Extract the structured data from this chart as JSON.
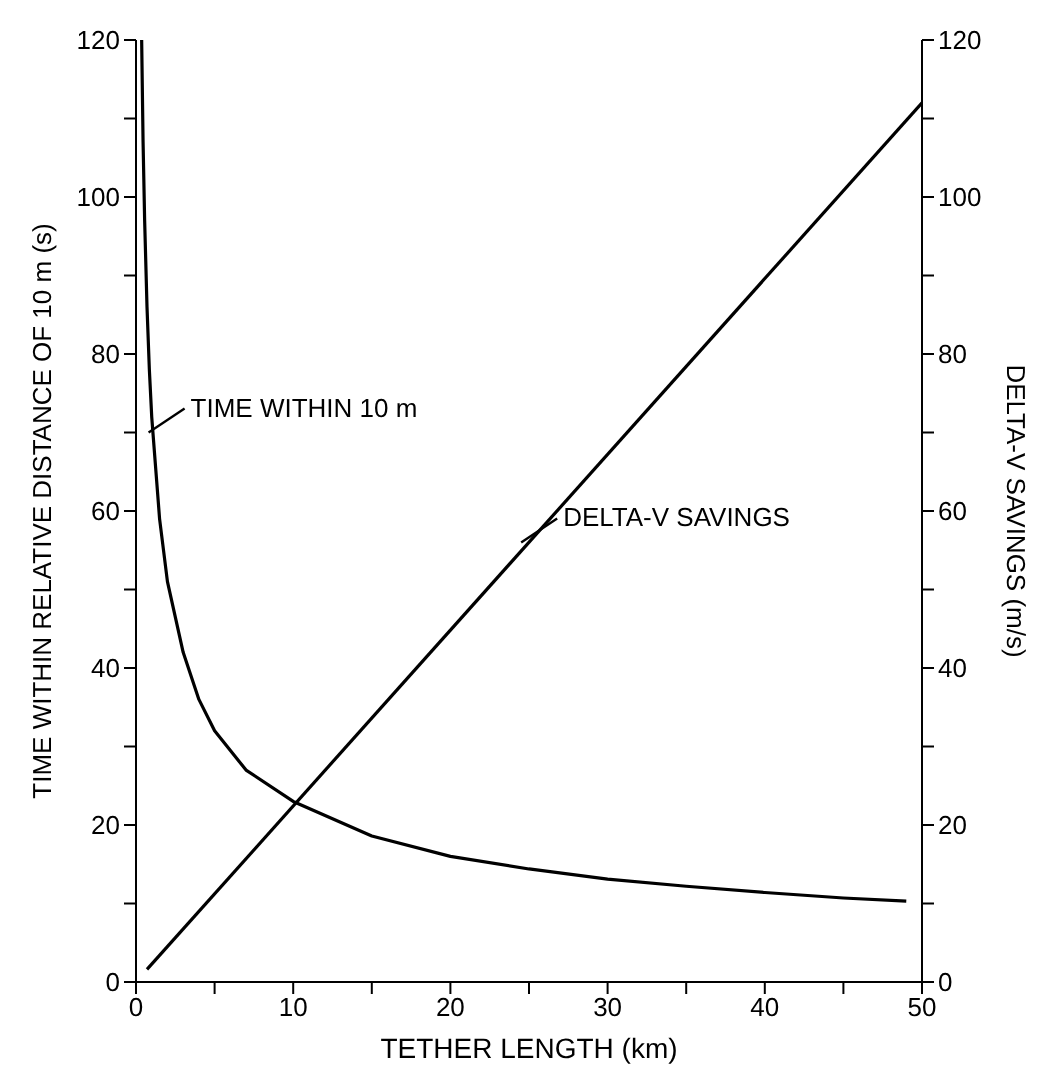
{
  "chart_data": {
    "type": "line",
    "xlabel": "TETHER LENGTH (km)",
    "ylabel": "TIME WITHIN RELATIVE DISTANCE OF 10 m (s)",
    "y2label": "DELTA-V SAVINGS (m/s)",
    "xlim": [
      0,
      50
    ],
    "xticks": [
      0,
      {
        "value": 5,
        "label": null
      },
      10,
      {
        "value": 15,
        "label": null
      },
      20,
      {
        "value": 25,
        "label": null
      },
      30,
      {
        "value": 35,
        "label": null
      },
      40,
      {
        "value": 45,
        "label": null
      },
      50
    ],
    "ylim": [
      0,
      120
    ],
    "yticks": [
      0,
      {
        "value": 10,
        "label": null
      },
      20,
      {
        "value": 30,
        "label": null
      },
      40,
      {
        "value": 50,
        "label": null
      },
      60,
      {
        "value": 70,
        "label": null
      },
      80,
      {
        "value": 90,
        "label": null
      },
      100,
      {
        "value": 110,
        "label": null
      },
      120
    ],
    "y2lim": [
      0,
      120
    ],
    "y2ticks": [
      0,
      {
        "value": 10,
        "label": null
      },
      20,
      {
        "value": 30,
        "label": null
      },
      40,
      {
        "value": 50,
        "label": null
      },
      60,
      {
        "value": 70,
        "label": null
      },
      80,
      {
        "value": 90,
        "label": null
      },
      100,
      {
        "value": 110,
        "label": null
      },
      120
    ],
    "series": [
      {
        "color": "#000000",
        "x": [
          0.36,
          0.45,
          0.55,
          0.7,
          0.85,
          1,
          1.5,
          2,
          3,
          4,
          5,
          7,
          10,
          15,
          20,
          25,
          30,
          35,
          40,
          45,
          49
        ],
        "values": [
          120,
          107,
          97,
          86,
          78,
          72,
          59,
          51,
          42,
          36,
          32,
          27,
          23,
          18.6,
          16,
          14.4,
          13.1,
          12.2,
          11.4,
          10.7,
          10.3
        ]
      },
      {
        "color": "#000000",
        "axis": "y2",
        "x": [
          0.7,
          50
        ],
        "values": [
          1.6,
          112
        ]
      }
    ],
    "annotations": [
      {
        "text": "TIME WITHIN 10 m",
        "x": 0.8,
        "y": 70
      },
      {
        "text": "DELTA-V SAVINGS",
        "x": 24.5,
        "y": 56
      }
    ],
    "marker": "none",
    "line_style": "solid",
    "grid": false,
    "legend": false
  }
}
